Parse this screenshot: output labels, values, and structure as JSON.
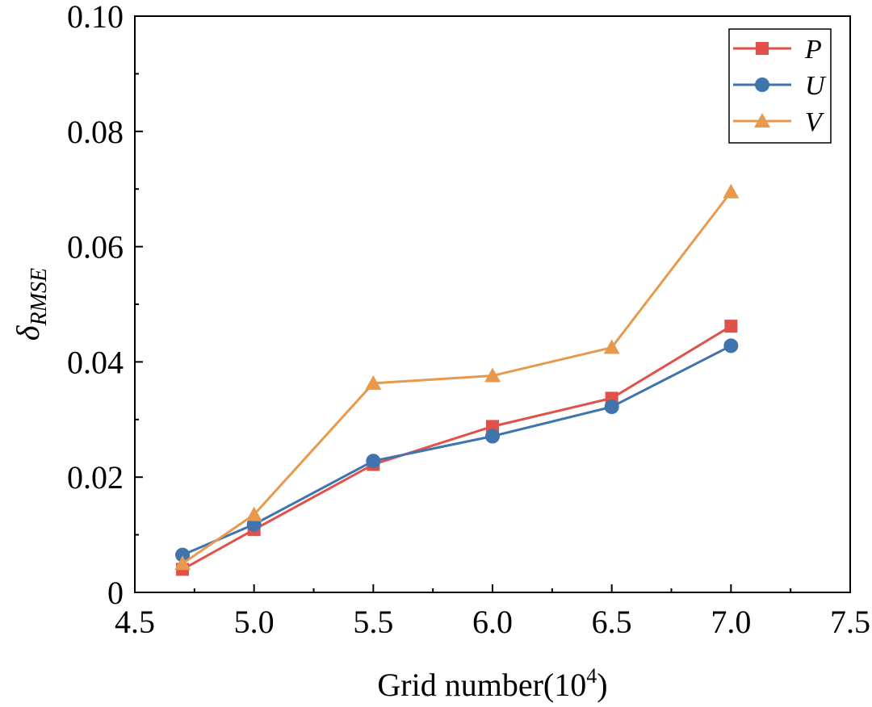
{
  "chart_data": {
    "type": "line",
    "xlabel_main": "Grid number(10",
    "xlabel_sup": "4",
    "xlabel_close": ")",
    "ylabel_main": "δ",
    "ylabel_sub": "RMSE",
    "xlim": [
      4.5,
      7.5
    ],
    "ylim": [
      0,
      0.1
    ],
    "xticks": [
      "4.5",
      "5.0",
      "5.5",
      "6.0",
      "6.5",
      "7.0",
      "7.5"
    ],
    "xtick_values": [
      4.5,
      5.0,
      5.5,
      6.0,
      6.5,
      7.0,
      7.5
    ],
    "yticks": [
      "0",
      "0.02",
      "0.04",
      "0.06",
      "0.08",
      "0.10"
    ],
    "ytick_values": [
      0,
      0.02,
      0.04,
      0.06,
      0.08,
      0.1
    ],
    "grid": false,
    "legend_position": "top-right",
    "x": [
      4.7,
      5.0,
      5.5,
      6.0,
      6.5,
      7.0
    ],
    "series": [
      {
        "name": "P",
        "color": "#e0514a",
        "marker": "square",
        "values": [
          0.004,
          0.0109,
          0.0222,
          0.0288,
          0.0337,
          0.0462
        ]
      },
      {
        "name": "U",
        "color": "#3f74ad",
        "marker": "circle",
        "values": [
          0.0065,
          0.0118,
          0.0228,
          0.0271,
          0.0322,
          0.0428
        ]
      },
      {
        "name": "V",
        "color": "#e89a4c",
        "marker": "triangle",
        "values": [
          0.005,
          0.0135,
          0.0363,
          0.0376,
          0.0425,
          0.0695
        ]
      }
    ]
  }
}
